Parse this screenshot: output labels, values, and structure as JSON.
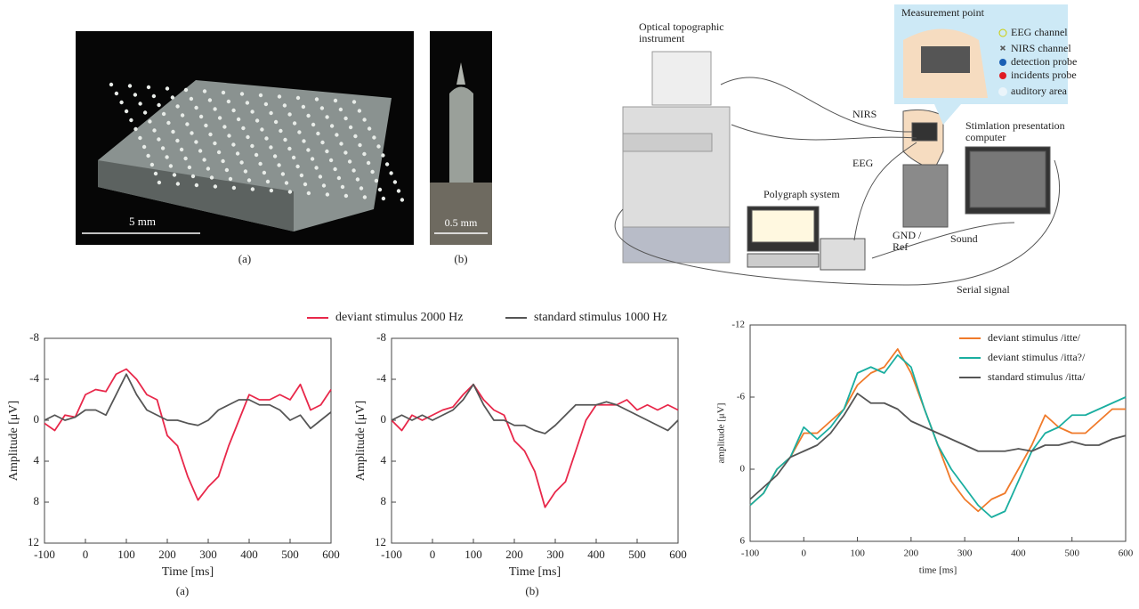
{
  "photos": [
    {
      "scale": "5 mm",
      "caption": "(a)"
    },
    {
      "scale": "0.5 mm",
      "caption": "(b)"
    }
  ],
  "diagram": {
    "instrument": "Optical topographic instrument",
    "measurement_title": "Measurement point",
    "legend": [
      "EEG channel",
      "NIRS channel",
      "detection probe",
      "incidents probe",
      "auditory area"
    ],
    "nirs": "NIRS",
    "eeg": "EEG",
    "polygraph": "Polygraph system",
    "gnd": "GND / Ref",
    "sound": "Sound",
    "serial": "Serial signal",
    "computer": "Stimlation presentation computer"
  },
  "chart_data": [
    {
      "type": "line",
      "caption": "(a)",
      "x_label": "Time [ms]",
      "y_label": "Amplitude [μV]",
      "x": [
        -100,
        -75,
        -50,
        -25,
        0,
        25,
        50,
        75,
        100,
        125,
        150,
        175,
        200,
        225,
        250,
        275,
        300,
        325,
        350,
        375,
        400,
        425,
        450,
        475,
        500,
        525,
        550,
        575,
        600
      ],
      "xlim": [
        -100,
        600
      ],
      "xticks": [
        -100,
        0,
        100,
        200,
        300,
        400,
        500,
        600
      ],
      "ylim": [
        -8,
        12
      ],
      "yticks": [
        -8,
        -4,
        0,
        4,
        8,
        12
      ],
      "y_inverted": true,
      "series": [
        {
          "name": "deviant stimulus 2000 Hz",
          "color": "#e8284a",
          "values": [
            0.3,
            1,
            -0.5,
            -0.3,
            -2.5,
            -3,
            -2.8,
            -4.5,
            -5,
            -4,
            -2.5,
            -2,
            1.5,
            2.5,
            5.5,
            7.8,
            6.5,
            5.5,
            2.5,
            0,
            -2.5,
            -2,
            -2,
            -2.5,
            -2,
            -3.5,
            -1,
            -1.5,
            -3
          ]
        },
        {
          "name": "standard stimulus 1000 Hz",
          "color": "#555555",
          "values": [
            0,
            -0.5,
            0,
            -0.3,
            -1,
            -1,
            -0.5,
            -2.5,
            -4.5,
            -2.5,
            -1,
            -0.5,
            0,
            0,
            0.3,
            0.5,
            0,
            -1,
            -1.5,
            -2,
            -2,
            -1.5,
            -1.5,
            -1,
            0,
            -0.5,
            0.8,
            0,
            -0.8
          ]
        }
      ]
    },
    {
      "type": "line",
      "caption": "(b)",
      "x_label": "Time [ms]",
      "y_label": "Amplitude [μV]",
      "x": [
        -100,
        -75,
        -50,
        -25,
        0,
        25,
        50,
        75,
        100,
        125,
        150,
        175,
        200,
        225,
        250,
        275,
        300,
        325,
        350,
        375,
        400,
        425,
        450,
        475,
        500,
        525,
        550,
        575,
        600
      ],
      "xlim": [
        -100,
        600
      ],
      "xticks": [
        -100,
        0,
        100,
        200,
        300,
        400,
        500,
        600
      ],
      "ylim": [
        -8,
        12
      ],
      "yticks": [
        -8,
        -4,
        0,
        4,
        8,
        12
      ],
      "y_inverted": true,
      "series": [
        {
          "color": "#e8284a",
          "values": [
            0,
            1,
            -0.5,
            0,
            -0.5,
            -1,
            -1.3,
            -2.5,
            -3.5,
            -2,
            -1,
            -0.5,
            2,
            3,
            5,
            8.5,
            7,
            6,
            3,
            0,
            -1.5,
            -1.5,
            -1.5,
            -2,
            -1,
            -1.5,
            -1,
            -1.5,
            -1
          ]
        },
        {
          "color": "#555555",
          "values": [
            0,
            -0.5,
            0,
            -0.5,
            0,
            -0.5,
            -1,
            -2,
            -3.5,
            -1.5,
            0,
            0,
            0.5,
            0.5,
            1,
            1.3,
            0.5,
            -0.5,
            -1.5,
            -1.5,
            -1.5,
            -1.8,
            -1.5,
            -1,
            -0.5,
            0,
            0.5,
            1,
            0
          ]
        }
      ]
    },
    {
      "type": "line",
      "x_label": "time [ms]",
      "y_label": "amplitude [μV]",
      "x": [
        -100,
        -75,
        -50,
        -25,
        0,
        25,
        50,
        75,
        100,
        125,
        150,
        175,
        200,
        225,
        250,
        275,
        300,
        325,
        350,
        375,
        400,
        425,
        450,
        475,
        500,
        525,
        550,
        575,
        600
      ],
      "xlim": [
        -100,
        600
      ],
      "xticks": [
        -100,
        0,
        100,
        200,
        300,
        400,
        500,
        600
      ],
      "ylim": [
        -12,
        6
      ],
      "yticks": [
        -12,
        -6,
        0,
        6
      ],
      "y_inverted": true,
      "series": [
        {
          "name": "deviant stimulus /itte/",
          "color": "#f07a2a",
          "values": [
            3,
            2,
            0,
            -1,
            -3,
            -3,
            -4,
            -5,
            -7,
            -8,
            -8.5,
            -10,
            -8,
            -5,
            -2,
            1,
            2.5,
            3.5,
            2.5,
            2,
            0,
            -2,
            -4.5,
            -3.5,
            -3,
            -3,
            -4,
            -5,
            -5
          ]
        },
        {
          "name": "deviant stimulus /itta?/",
          "color": "#1aaea0",
          "values": [
            3,
            2,
            0,
            -1,
            -3.5,
            -2.5,
            -3.5,
            -5,
            -8,
            -8.5,
            -8,
            -9.5,
            -8.5,
            -5,
            -2,
            0,
            1.5,
            3,
            4,
            3.5,
            1,
            -1.5,
            -3,
            -3.5,
            -4.5,
            -4.5,
            -5,
            -5.5,
            -6
          ]
        },
        {
          "name": "standard stimulus /itta/",
          "color": "#555555",
          "values": [
            2.5,
            1.5,
            0.5,
            -1,
            -1.5,
            -2,
            -3,
            -4.5,
            -6.3,
            -5.5,
            -5.5,
            -5,
            -4,
            -3.5,
            -3,
            -2.5,
            -2,
            -1.5,
            -1.5,
            -1.5,
            -1.7,
            -1.5,
            -2,
            -2,
            -2.3,
            -2,
            -2,
            -2.5,
            -2.8
          ]
        }
      ]
    }
  ]
}
